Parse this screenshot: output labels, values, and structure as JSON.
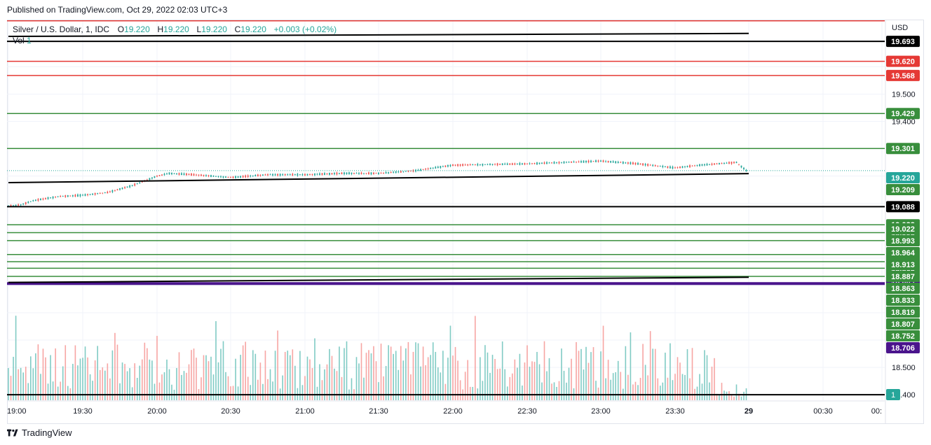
{
  "header": {
    "published": "Published on TradingView.com, Oct 29, 2022 02:03 UTC+3"
  },
  "legend": {
    "symbol": "Silver / U.S. Dollar, 1, IDC",
    "o_label": "O",
    "o": "19.220",
    "h_label": "H",
    "h": "19.220",
    "l_label": "L",
    "l": "19.220",
    "c_label": "C",
    "c": "19.220",
    "change": "+0.003 (+0.02%)",
    "vol_label": "Vol",
    "vol": "1"
  },
  "currency": "USD",
  "footer": {
    "brand": "TradingView"
  },
  "colors": {
    "up": "#26a69a",
    "down": "#ef5350",
    "red_line": "#e53935",
    "green_line": "#388e3c",
    "black": "#000000",
    "purple": "#4a148c",
    "vol_up": "#80cbc4",
    "vol_down": "#f7a5a3"
  },
  "chart_data": {
    "type": "candlestick",
    "symbol": "Silver / U.S. Dollar",
    "interval": "1",
    "x_tick_labels": [
      "19:00",
      "19:30",
      "20:00",
      "20:30",
      "21:00",
      "21:30",
      "22:00",
      "22:30",
      "23:00",
      "23:30",
      "29",
      "00:30",
      "00:"
    ],
    "y_tick_labels": [
      "19.500",
      "19.400",
      "18.500",
      "18.400"
    ],
    "ylim": [
      18.38,
      19.77
    ],
    "horizontal_levels": [
      {
        "value": 19.768,
        "color": "red",
        "label": ""
      },
      {
        "value": 19.693,
        "color": "black",
        "label": "19.693"
      },
      {
        "value": 19.62,
        "color": "red",
        "label": "19.620"
      },
      {
        "value": 19.568,
        "color": "red",
        "label": "19.568"
      },
      {
        "value": 19.429,
        "color": "green",
        "label": "19.429"
      },
      {
        "value": 19.301,
        "color": "green",
        "label": "19.301"
      },
      {
        "value": 19.088,
        "color": "black",
        "label": "19.088"
      },
      {
        "value": 19.022,
        "color": "green",
        "label": "19.022"
      },
      {
        "value": 18.993,
        "color": "green",
        "label": "18.993"
      },
      {
        "value": 18.964,
        "color": "green",
        "label": "18.964"
      },
      {
        "value": 18.913,
        "color": "green",
        "label": "18.913"
      },
      {
        "value": 18.887,
        "color": "green",
        "label": "18.887"
      },
      {
        "value": 18.863,
        "color": "green",
        "label": "18.863"
      },
      {
        "value": 18.833,
        "color": "green",
        "label": "18.833"
      },
      {
        "value": 18.807,
        "color": "purple",
        "label": "18.807"
      },
      {
        "value": 18.4,
        "color": "black",
        "label": ""
      }
    ],
    "trendlines": [
      {
        "color": "black",
        "from": {
          "x": "19:00",
          "y": 19.711
        },
        "to": {
          "x": "00:",
          "y": 19.722
        }
      },
      {
        "color": "black",
        "from": {
          "x": "19:00",
          "y": 19.176
        },
        "to": {
          "x": "00:",
          "y": 19.209
        }
      },
      {
        "color": "black",
        "from": {
          "x": "19:00",
          "y": 18.811
        },
        "to": {
          "x": "00:",
          "y": 18.83
        }
      }
    ],
    "price_badges": [
      {
        "label": "19.220",
        "value": 19.22,
        "color": "green"
      },
      {
        "label": "19.209",
        "value": 19.209,
        "color": "green"
      },
      {
        "label": "18.819",
        "value": 18.819,
        "color": "green"
      },
      {
        "label": "18.752",
        "value": 18.752,
        "color": "green"
      },
      {
        "label": "18.706",
        "value": 18.706,
        "color": "purple"
      },
      {
        "label": "1",
        "value": 18.395,
        "color": "volume"
      }
    ],
    "last_price": 19.22,
    "price_path": [
      {
        "t": "19:00",
        "p": 19.09
      },
      {
        "t": "19:05",
        "p": 19.095
      },
      {
        "t": "19:10",
        "p": 19.11
      },
      {
        "t": "19:20",
        "p": 19.125
      },
      {
        "t": "19:30",
        "p": 19.13
      },
      {
        "t": "19:40",
        "p": 19.14
      },
      {
        "t": "19:50",
        "p": 19.165
      },
      {
        "t": "20:00",
        "p": 19.2
      },
      {
        "t": "20:05",
        "p": 19.21
      },
      {
        "t": "20:15",
        "p": 19.205
      },
      {
        "t": "20:30",
        "p": 19.195
      },
      {
        "t": "20:45",
        "p": 19.205
      },
      {
        "t": "21:00",
        "p": 19.205
      },
      {
        "t": "21:15",
        "p": 19.21
      },
      {
        "t": "21:30",
        "p": 19.21
      },
      {
        "t": "21:45",
        "p": 19.22
      },
      {
        "t": "22:00",
        "p": 19.24
      },
      {
        "t": "22:30",
        "p": 19.245
      },
      {
        "t": "22:45",
        "p": 19.25
      },
      {
        "t": "23:00",
        "p": 19.255
      },
      {
        "t": "23:15",
        "p": 19.245
      },
      {
        "t": "23:30",
        "p": 19.23
      },
      {
        "t": "23:40",
        "p": 19.24
      },
      {
        "t": "23:55",
        "p": 19.25
      },
      {
        "t": "23:59",
        "p": 19.22
      }
    ]
  }
}
